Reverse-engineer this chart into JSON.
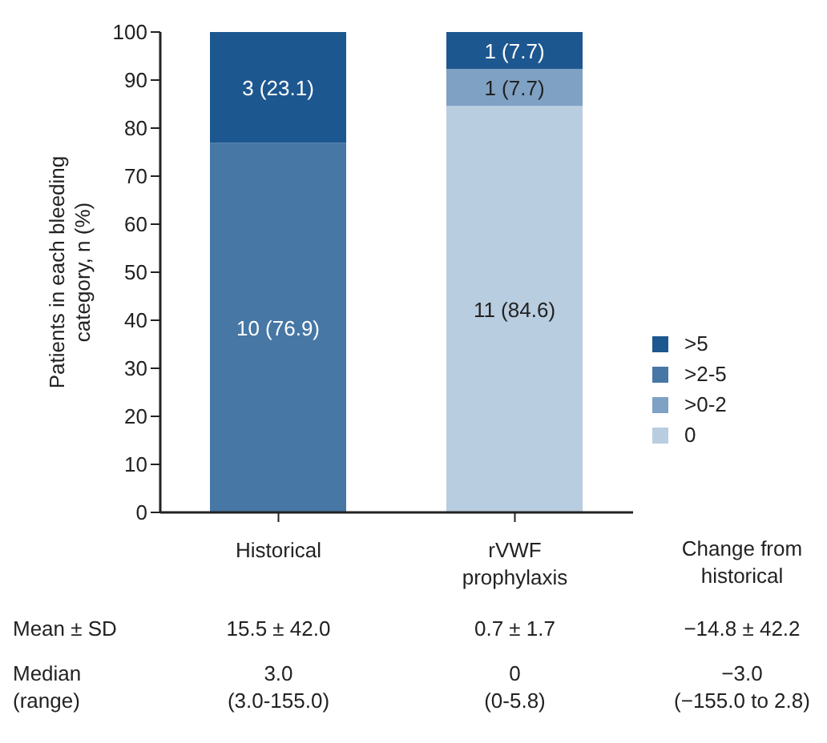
{
  "chart_data": {
    "type": "bar",
    "stacked": true,
    "categories": [
      "Historical",
      "rVWF prophylaxis"
    ],
    "series": [
      {
        "name": "0",
        "color": "#b8cde0",
        "values": [
          0,
          84.6
        ],
        "value_labels": [
          null,
          "11 (84.6)"
        ]
      },
      {
        "name": ">0-2",
        "color": "#7fa1c4",
        "values": [
          0,
          7.7
        ],
        "value_labels": [
          null,
          "1 (7.7)"
        ]
      },
      {
        "name": ">2-5",
        "color": "#4677a5",
        "values": [
          76.9,
          0
        ],
        "value_labels": [
          "10 (76.9)",
          null
        ]
      },
      {
        "name": ">5",
        "color": "#1d5790",
        "values": [
          23.1,
          7.7
        ],
        "value_labels": [
          "3 (23.1)",
          "1 (7.7)"
        ]
      }
    ],
    "ylabel": "Patients in each bleeding category, n (%)",
    "ylim": [
      0,
      100
    ],
    "yticks": [
      0,
      10,
      20,
      30,
      40,
      50,
      60,
      70,
      80,
      90,
      100
    ],
    "grid": false,
    "legend": "right",
    "annotations": [
      "Change from historical",
      "Mean ± SD",
      "15.5 ± 42.0",
      "0.7 ± 1.7",
      "−14.8 ± 42.2",
      "Median\n(range)",
      "3.0\n(3.0-155.0)",
      "0\n(0-5.8)",
      "−3.0\n(−155.0 to 2.8)"
    ]
  }
}
